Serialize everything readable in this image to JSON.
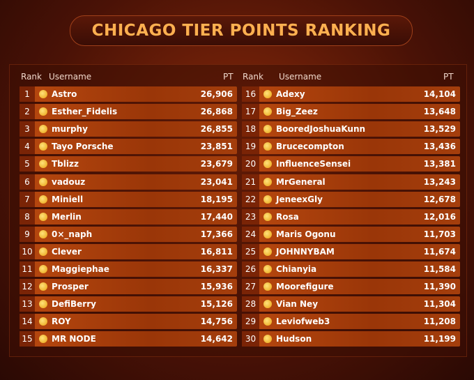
{
  "title": "CHICAGO TIER POINTS RANKING",
  "tables": [
    {
      "headers": [
        "Rank",
        "Username",
        "PT"
      ],
      "rows": [
        [
          1,
          "Astro",
          "26,906"
        ],
        [
          2,
          "Esther_Fidelis",
          "26,868"
        ],
        [
          3,
          "murphy",
          "26,855"
        ],
        [
          4,
          "Tayo Porsche",
          "23,851"
        ],
        [
          5,
          "Tblizz",
          "23,679"
        ],
        [
          6,
          "vadouz",
          "23,041"
        ],
        [
          7,
          "Miniell",
          "18,195"
        ],
        [
          8,
          "Merlin",
          "17,440"
        ],
        [
          9,
          "0×_naph",
          "17,366"
        ],
        [
          10,
          "Clever",
          "16,811"
        ],
        [
          11,
          "Maggiephae",
          "16,337"
        ],
        [
          12,
          "Prosper",
          "15,936"
        ],
        [
          13,
          "DefiBerry",
          "15,126"
        ],
        [
          14,
          "ROY",
          "14,756"
        ],
        [
          15,
          "MR NODE",
          "14,642"
        ]
      ]
    },
    {
      "headers": [
        "Rank",
        "Username",
        "PT"
      ],
      "rows": [
        [
          16,
          "Adexy",
          "14,104"
        ],
        [
          17,
          "Big_Zeez",
          "13,648"
        ],
        [
          18,
          "BooredJoshuaKunn",
          "13,529"
        ],
        [
          19,
          "Brucecompton",
          "13,436"
        ],
        [
          20,
          "InfluenceSensei",
          "13,381"
        ],
        [
          21,
          "MrGeneral",
          "13,243"
        ],
        [
          22,
          "JeneexGly",
          "12,678"
        ],
        [
          23,
          "Rosa",
          "12,016"
        ],
        [
          24,
          "Maris Ogonu",
          "11,703"
        ],
        [
          25,
          "JOHNNYBAM",
          "11,674"
        ],
        [
          26,
          "Chianyia",
          "11,584"
        ],
        [
          27,
          "Moorefigure",
          "11,390"
        ],
        [
          28,
          "Vian Ney",
          "11,304"
        ],
        [
          29,
          "Leviofweb3",
          "11,208"
        ],
        [
          30,
          "Hudson",
          "11,199"
        ]
      ]
    }
  ]
}
